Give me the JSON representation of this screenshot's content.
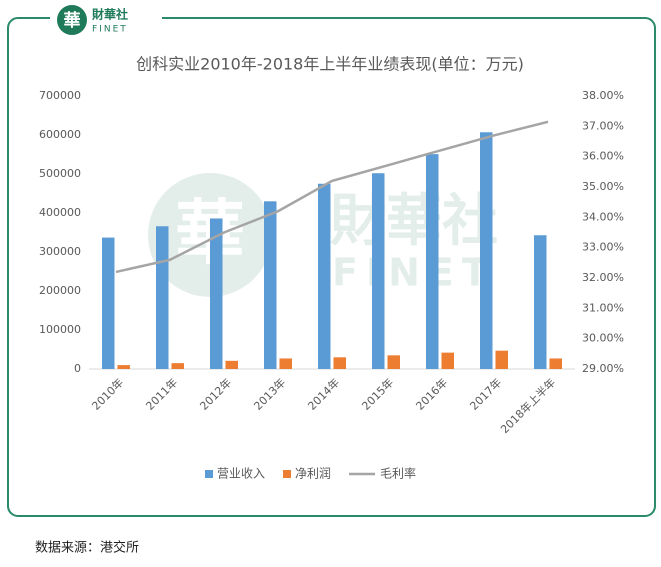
{
  "branding": {
    "icon": "華",
    "name": "財華社",
    "latin": "FINET"
  },
  "chart_data": {
    "type": "bar",
    "title": "创科实业2010年-2018年上半年业绩表现(单位：万元)",
    "categories": [
      "2010年",
      "2011年",
      "2012年",
      "2013年",
      "2014年",
      "2015年",
      "2016年",
      "2017年",
      "2018年上半年"
    ],
    "series": [
      {
        "name": "营业收入",
        "color": "#5b9bd5",
        "type": "bar",
        "values": [
          337000,
          366000,
          386000,
          430000,
          475000,
          502000,
          551000,
          607000,
          343000
        ]
      },
      {
        "name": "净利润",
        "color": "#ed7d31",
        "type": "bar",
        "values": [
          10000,
          15000,
          21000,
          27000,
          30000,
          35000,
          42000,
          47000,
          27000
        ]
      },
      {
        "name": "毛利率",
        "color": "#a5a5a5",
        "type": "line",
        "axis": "y2",
        "values": [
          32.2,
          32.6,
          33.5,
          34.2,
          35.2,
          35.7,
          36.2,
          36.7,
          37.15
        ]
      }
    ],
    "ylim": [
      0,
      700000
    ],
    "yticks": [
      0,
      100000,
      200000,
      300000,
      400000,
      500000,
      600000,
      700000
    ],
    "y2lim": [
      29,
      38
    ],
    "y2ticks": [
      {
        "value": 29,
        "label": "29.00%"
      },
      {
        "value": 30,
        "label": "30.00%"
      },
      {
        "value": 31,
        "label": "31.00%"
      },
      {
        "value": 32,
        "label": "32.00%"
      },
      {
        "value": 33,
        "label": "33.00%"
      },
      {
        "value": 34,
        "label": "34.00%"
      },
      {
        "value": 35,
        "label": "35.00%"
      },
      {
        "value": 36,
        "label": "36.00%"
      },
      {
        "value": 37,
        "label": "37.00%"
      },
      {
        "value": 38,
        "label": "38.00%"
      }
    ],
    "grid": false,
    "legend": "bottom",
    "source": "数据来源：港交所"
  }
}
